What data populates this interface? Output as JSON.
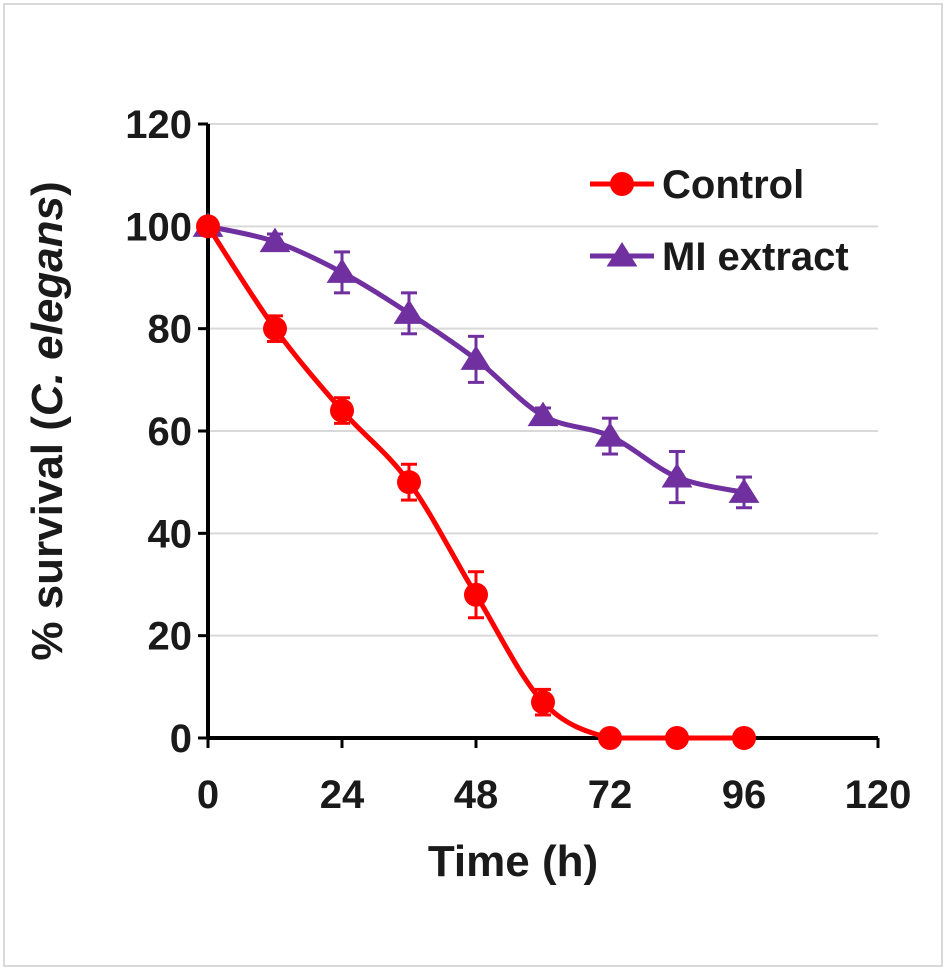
{
  "chart_data": {
    "type": "line",
    "title": "",
    "xlabel": "Time (h)",
    "ylabel": {
      "prefix": "% survival (",
      "italic": "C. elegans",
      "suffix": ")"
    },
    "xlim": [
      0,
      120
    ],
    "ylim": [
      0,
      120
    ],
    "xticks": [
      0,
      24,
      48,
      72,
      96,
      120
    ],
    "yticks": [
      0,
      20,
      40,
      60,
      80,
      100,
      120
    ],
    "grid": "horizontal",
    "legend_position": "top-right",
    "series": [
      {
        "name": "Control",
        "color": "#ff0000",
        "marker": "circle",
        "x": [
          0,
          12,
          24,
          36,
          48,
          60,
          72,
          84,
          96
        ],
        "y": [
          100,
          80,
          64,
          50,
          28,
          7,
          0,
          0,
          0
        ],
        "err": [
          0,
          2.5,
          2.5,
          3.5,
          4.5,
          2.5,
          0,
          0,
          0
        ]
      },
      {
        "name": "MI extract",
        "color": "#7030a0",
        "marker": "triangle",
        "x": [
          0,
          12,
          24,
          36,
          48,
          60,
          72,
          84,
          96
        ],
        "y": [
          100,
          97,
          91,
          83,
          74,
          63,
          59,
          51,
          48
        ],
        "err": [
          0,
          1.5,
          4,
          4,
          4.5,
          1.5,
          3.5,
          5,
          3
        ]
      }
    ]
  }
}
